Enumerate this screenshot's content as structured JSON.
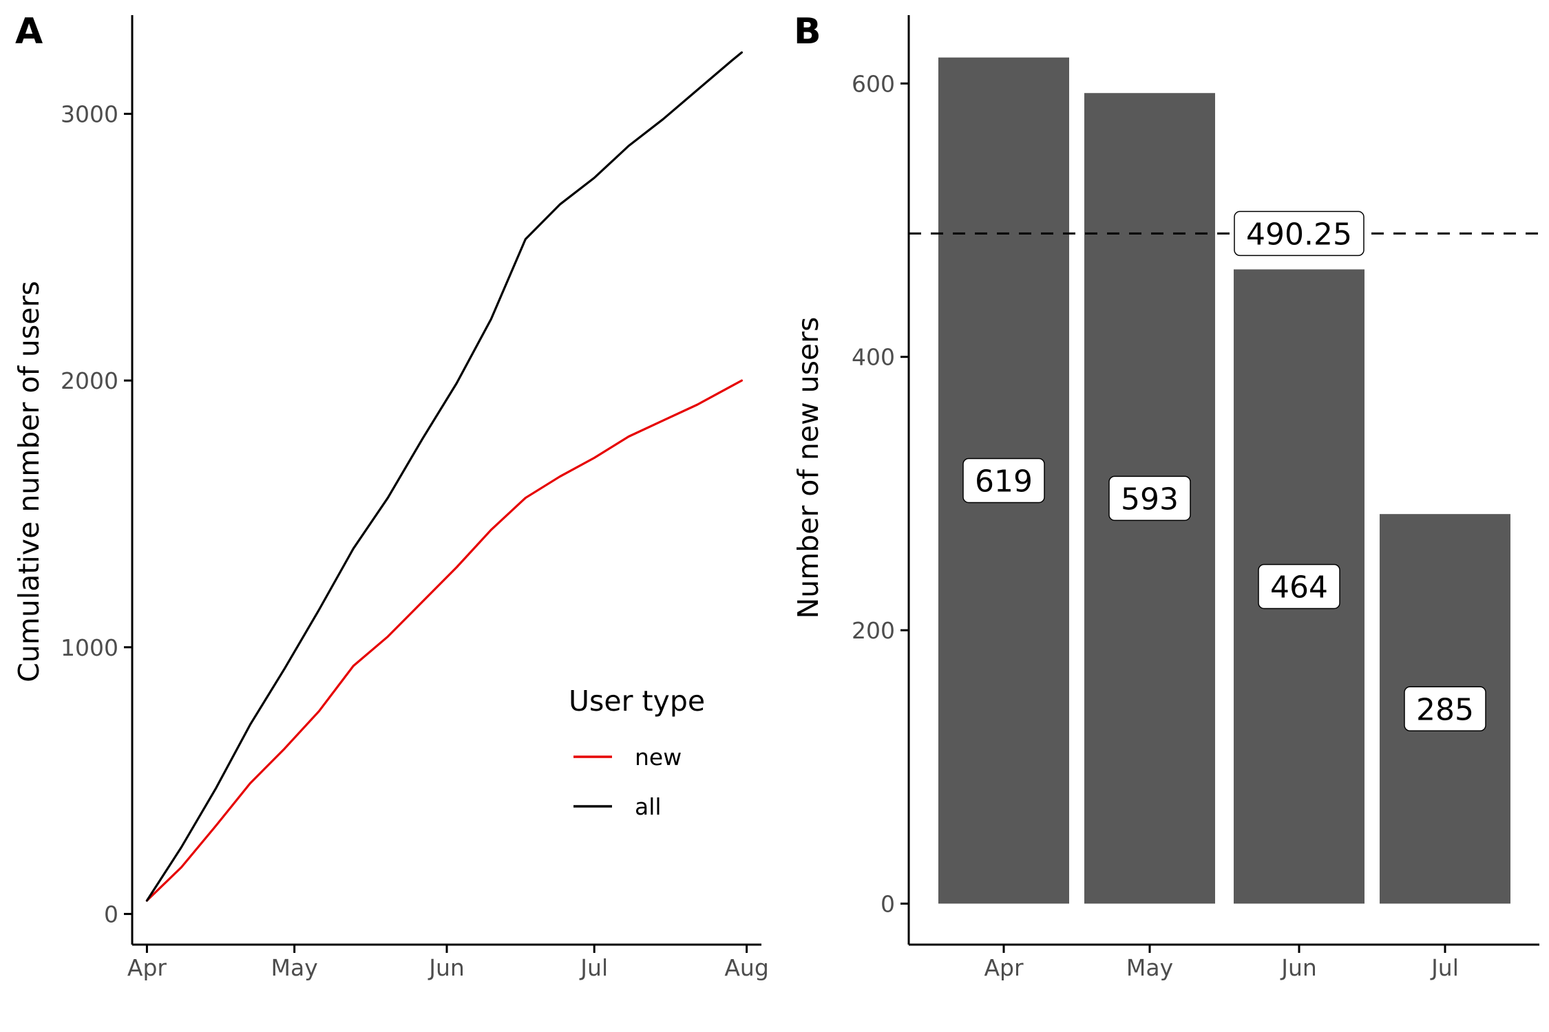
{
  "panels": {
    "a": "A",
    "b": "B"
  },
  "chart_data": [
    {
      "type": "line",
      "panel": "A",
      "xlabel": "",
      "ylabel": "Cumulative number of users",
      "xticks": [
        "Apr",
        "May",
        "Jun",
        "Jul",
        "Aug"
      ],
      "yticks": [
        "0",
        "1000",
        "2000",
        "3000"
      ],
      "ylim": [
        -115,
        3370
      ],
      "grid": false,
      "legend": {
        "title": "User type",
        "position": "inside-bottom-right",
        "entries": [
          "new",
          "all"
        ]
      },
      "x_dates": [
        "2020-04-01",
        "2020-04-08",
        "2020-04-15",
        "2020-04-22",
        "2020-04-29",
        "2020-05-06",
        "2020-05-13",
        "2020-05-20",
        "2020-05-27",
        "2020-06-03",
        "2020-06-10",
        "2020-06-17",
        "2020-06-24",
        "2020-07-01",
        "2020-07-08",
        "2020-07-15",
        "2020-07-22",
        "2020-07-29",
        "2020-07-31"
      ],
      "series": [
        {
          "name": "new",
          "color": "#e60000",
          "values": [
            50,
            175,
            330,
            490,
            620,
            760,
            930,
            1040,
            1170,
            1300,
            1440,
            1560,
            1640,
            1710,
            1790,
            1850,
            1910,
            1980,
            2000
          ]
        },
        {
          "name": "all",
          "color": "#000000",
          "values": [
            50,
            250,
            470,
            710,
            920,
            1140,
            1370,
            1560,
            1780,
            1990,
            2230,
            2530,
            2660,
            2760,
            2880,
            2980,
            3090,
            3200,
            3230
          ]
        }
      ]
    },
    {
      "type": "bar",
      "panel": "B",
      "xlabel": "",
      "ylabel": "Number of new users",
      "categories": [
        "Apr",
        "May",
        "Jun",
        "Jul"
      ],
      "values": [
        619,
        593,
        464,
        285
      ],
      "value_labels": [
        "619",
        "593",
        "464",
        "285"
      ],
      "yticks": [
        "0",
        "200",
        "400",
        "600"
      ],
      "ylim": [
        -30,
        650
      ],
      "grid": false,
      "bar_color": "#595959",
      "reference_line": {
        "value": 490.25,
        "label": "490.25",
        "style": "dashed"
      }
    }
  ]
}
